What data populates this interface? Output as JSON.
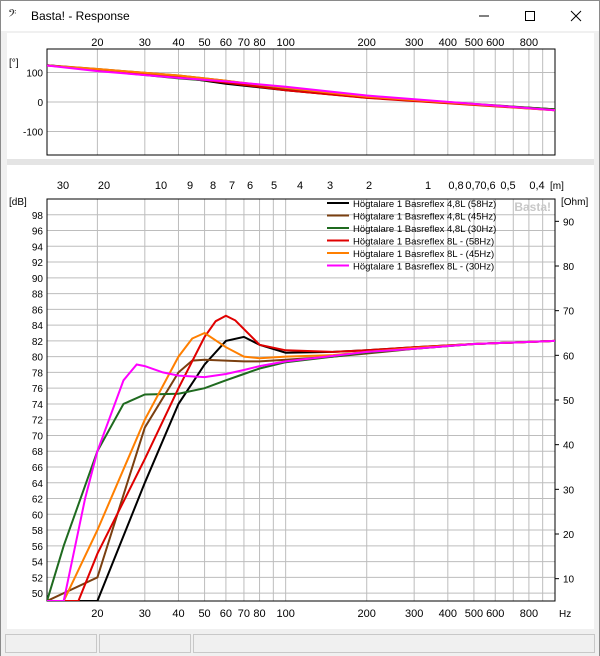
{
  "window": {
    "title": "Basta! - Response",
    "app_icon": "music-note-icon",
    "minimize_icon": "minimize-icon",
    "maximize_icon": "maximize-icon",
    "close_icon": "close-icon"
  },
  "colors": {
    "r4_58": "#000000",
    "r4_45": "#7a3f10",
    "r4_30": "#1f6a1f",
    "r8_58": "#e00000",
    "r8_45": "#ff7f00",
    "r8_30": "#ff00ff",
    "grid": "#bdbdbd",
    "gridMinor": "#e0e0e0"
  },
  "chart_data": [
    {
      "type": "line",
      "title": "",
      "ylabel": "[°]",
      "xscale": "log",
      "xlim": [
        13,
        1000
      ],
      "ylim": [
        -180,
        180
      ],
      "x_ticks": [
        20,
        30,
        40,
        50,
        60,
        70,
        80,
        100,
        200,
        300,
        400,
        500,
        600,
        800
      ],
      "y_ticks": [
        100,
        0,
        -100
      ],
      "series": [
        {
          "key": "r4_58",
          "x": [
            13,
            20,
            40,
            60,
            100,
            200,
            1000
          ],
          "y": [
            125,
            110,
            85,
            62,
            40,
            15,
            -25
          ]
        },
        {
          "key": "r4_45",
          "x": [
            13,
            20,
            40,
            60,
            100,
            200,
            1000
          ],
          "y": [
            125,
            112,
            90,
            72,
            45,
            18,
            -25
          ]
        },
        {
          "key": "r4_30",
          "x": [
            13,
            20,
            40,
            60,
            100,
            200,
            1000
          ],
          "y": [
            125,
            108,
            80,
            68,
            42,
            15,
            -25
          ]
        },
        {
          "key": "r8_58",
          "x": [
            13,
            20,
            40,
            60,
            100,
            200,
            1000
          ],
          "y": [
            124,
            110,
            86,
            66,
            40,
            14,
            -28
          ]
        },
        {
          "key": "r8_45",
          "x": [
            13,
            20,
            40,
            60,
            100,
            200,
            1000
          ],
          "y": [
            124,
            112,
            90,
            72,
            48,
            18,
            -28
          ]
        },
        {
          "key": "r8_30",
          "x": [
            13,
            20,
            40,
            60,
            100,
            200,
            1000
          ],
          "y": [
            124,
            105,
            82,
            70,
            52,
            22,
            -28
          ]
        }
      ]
    },
    {
      "type": "line",
      "title": "",
      "ylabel": "[dB]",
      "y2label": "[Ohm]",
      "xunit": "Hz",
      "wavelength_unit": "[m]",
      "xscale": "log",
      "xlim": [
        13,
        1000
      ],
      "ylim": [
        49,
        100
      ],
      "y2lim": [
        5,
        95
      ],
      "watermark": "Basta!",
      "x_ticks": [
        20,
        30,
        40,
        50,
        60,
        70,
        80,
        100,
        200,
        300,
        400,
        500,
        600,
        800
      ],
      "wavelength_ticks": [
        "30",
        "20",
        "10",
        "9",
        "8",
        "7",
        "6",
        "5",
        "4",
        "3",
        "2",
        "1",
        "0,8",
        "0,7",
        "0,6",
        "0,5",
        "0,4"
      ],
      "y_ticks": [
        50,
        52,
        54,
        56,
        58,
        60,
        62,
        64,
        66,
        68,
        70,
        72,
        74,
        76,
        78,
        80,
        82,
        84,
        86,
        88,
        90,
        92,
        94,
        96,
        98
      ],
      "y2_ticks": [
        10,
        20,
        30,
        40,
        50,
        60,
        70,
        80,
        90
      ],
      "legend_position": "top-right",
      "series": [
        {
          "key": "r4_58",
          "name": "Högtalare 1 Basreflex 4,8L (58Hz)",
          "x": [
            13,
            20,
            30,
            40,
            50,
            60,
            70,
            80,
            100,
            150,
            200,
            300,
            500,
            1000
          ],
          "y": [
            49,
            49,
            64,
            74,
            79,
            82,
            82.5,
            81.5,
            80.5,
            80.6,
            80.8,
            81.2,
            81.6,
            82
          ]
        },
        {
          "key": "r4_45",
          "name": "Högtalare 1 Basreflex 4,8L (45Hz)",
          "x": [
            13,
            20,
            30,
            40,
            45,
            50,
            60,
            70,
            80,
            100,
            150,
            200,
            300,
            500,
            1000
          ],
          "y": [
            49,
            52,
            71,
            78,
            79.5,
            79.6,
            79.5,
            79.4,
            79.4,
            79.6,
            80,
            80.4,
            81,
            81.6,
            82
          ]
        },
        {
          "key": "r4_30",
          "name": "Högtalare 1 Basreflex 4,8L (30Hz)",
          "x": [
            13,
            15,
            20,
            25,
            30,
            40,
            50,
            60,
            70,
            80,
            100,
            150,
            200,
            300,
            500,
            1000
          ],
          "y": [
            49,
            56,
            68,
            74,
            75.2,
            75.3,
            76,
            77,
            77.8,
            78.5,
            79.3,
            80,
            80.5,
            81,
            81.6,
            82
          ]
        },
        {
          "key": "r8_58",
          "name": "Högtalare 1 Basreflex 8L - (58Hz)",
          "x": [
            13,
            17,
            20,
            30,
            40,
            50,
            55,
            60,
            65,
            70,
            80,
            100,
            150,
            200,
            300,
            500,
            1000
          ],
          "y": [
            49,
            49,
            55,
            67,
            76,
            82.5,
            84.5,
            85.2,
            84.6,
            83.5,
            81.5,
            80.8,
            80.6,
            80.8,
            81.2,
            81.6,
            82
          ]
        },
        {
          "key": "r8_45",
          "name": "Högtalare 1 Basreflex 8L - (45Hz)",
          "x": [
            13,
            15,
            20,
            30,
            40,
            45,
            50,
            60,
            70,
            80,
            100,
            150,
            200,
            300,
            500,
            1000
          ],
          "y": [
            49,
            49,
            58,
            72,
            80,
            82.3,
            83,
            81.2,
            80,
            79.8,
            80,
            80.2,
            80.6,
            81.1,
            81.6,
            82
          ]
        },
        {
          "key": "r8_30",
          "name": "Högtalare 1 Basreflex 8L - (30Hz)",
          "x": [
            13,
            15,
            18,
            20,
            25,
            28,
            30,
            35,
            40,
            50,
            60,
            70,
            80,
            100,
            150,
            200,
            300,
            500,
            1000
          ],
          "y": [
            49,
            49,
            62,
            68,
            77,
            79,
            78.8,
            78,
            77.6,
            77.4,
            77.8,
            78.3,
            78.8,
            79.4,
            80.1,
            80.6,
            81,
            81.6,
            82
          ]
        }
      ]
    }
  ]
}
